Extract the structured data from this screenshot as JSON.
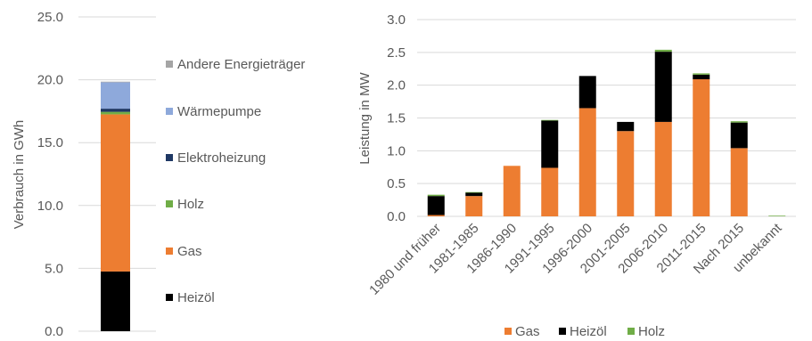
{
  "chart_data": [
    {
      "type": "bar",
      "stacked": true,
      "ylabel": "Verbrauch in GWh",
      "ylim": [
        0,
        25
      ],
      "yticks": [
        "0.0",
        "5.0",
        "10.0",
        "15.0",
        "20.0",
        "25.0"
      ],
      "yticks_values": [
        0,
        5,
        10,
        15,
        20,
        25
      ],
      "grid": true,
      "legend": "right",
      "series": [
        {
          "name": "Heizöl",
          "values": [
            4.75
          ],
          "color": "#000000"
        },
        {
          "name": "Gas",
          "values": [
            12.5
          ],
          "color": "#ED7D31"
        },
        {
          "name": "Holz",
          "values": [
            0.2
          ],
          "color": "#70AD47"
        },
        {
          "name": "Elektroheizung",
          "values": [
            0.25
          ],
          "color": "#1F3864"
        },
        {
          "name": "Wärmepumpe",
          "values": [
            2.1
          ],
          "color": "#8EA9DB"
        },
        {
          "name": "Andere Energieträger",
          "values": [
            0.05
          ],
          "color": "#A5A5A5"
        }
      ]
    },
    {
      "type": "bar",
      "stacked": true,
      "ylabel": "Leistung in MW",
      "ylim": [
        0,
        3
      ],
      "yticks": [
        "0.0",
        "0.5",
        "1.0",
        "1.5",
        "2.0",
        "2.5",
        "3.0"
      ],
      "yticks_values": [
        0,
        0.5,
        1,
        1.5,
        2,
        2.5,
        3
      ],
      "grid": true,
      "legend": "bottom",
      "categories": [
        "1980 und früher",
        "1981-1985",
        "1986-1990",
        "1991-1995",
        "1996-2000",
        "2001-2005",
        "2006-2010",
        "2011-2015",
        "Nach 2015",
        "unbekannt"
      ],
      "series": [
        {
          "name": "Gas",
          "values": [
            0.02,
            0.31,
            0.77,
            0.74,
            1.65,
            1.3,
            1.44,
            2.09,
            1.04,
            0.0
          ],
          "color": "#ED7D31"
        },
        {
          "name": "Heizöl",
          "values": [
            0.29,
            0.05,
            0.0,
            0.72,
            0.49,
            0.14,
            1.07,
            0.07,
            0.39,
            0.0
          ],
          "color": "#000000"
        },
        {
          "name": "Holz",
          "values": [
            0.02,
            0.01,
            0.0,
            0.01,
            0.0,
            0.0,
            0.03,
            0.02,
            0.02,
            0.01
          ],
          "color": "#70AD47"
        }
      ]
    }
  ]
}
